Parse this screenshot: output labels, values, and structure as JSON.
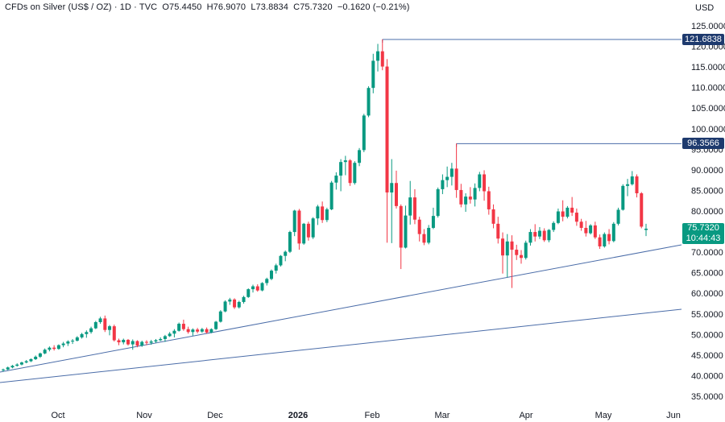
{
  "legend": {
    "title": "CFDs on Silver (US$ / OZ) · 1D · TVC",
    "open": "O75.4450",
    "high": "H76.9070",
    "low": "L73.8834",
    "close": "C75.7320",
    "change": "−0.1620 (−0.21%)"
  },
  "currency": "USD",
  "tags": {
    "high1": "121.6838",
    "high2": "96.3566",
    "last_price": "75.7320",
    "countdown": "10:44:43"
  },
  "colors": {
    "up": "#089981",
    "down": "#f23645",
    "line": "#4a6ca8",
    "tag": "#1e3a6e",
    "last": "#089981"
  },
  "chart_data": {
    "type": "candlestick",
    "title": "CFDs on Silver (US$ / OZ) · 1D · TVC",
    "ylim": [
      33,
      126
    ],
    "y_ticks": [
      35,
      40,
      45,
      50,
      55,
      60,
      65,
      70,
      75,
      80,
      85,
      90,
      95,
      100,
      105,
      110,
      115,
      120,
      125
    ],
    "x_tick_labels": [
      "Oct",
      "Nov",
      "Dec",
      "2026",
      "Feb",
      "Mar",
      "Apr",
      "May",
      "Jun"
    ],
    "series": [
      {
        "name": "Silver",
        "ohlc": [
          [
            41.4,
            41.7,
            41.0,
            41.5
          ],
          [
            41.5,
            42.2,
            41.3,
            42.0
          ],
          [
            42.0,
            42.6,
            41.8,
            42.4
          ],
          [
            42.4,
            43.0,
            42.2,
            42.7
          ],
          [
            42.7,
            43.4,
            42.5,
            43.2
          ],
          [
            43.2,
            43.8,
            43.0,
            43.5
          ],
          [
            43.5,
            44.2,
            43.3,
            44.0
          ],
          [
            44.0,
            44.9,
            43.8,
            44.6
          ],
          [
            44.6,
            45.6,
            44.3,
            45.4
          ],
          [
            45.4,
            46.6,
            45.2,
            46.3
          ],
          [
            46.3,
            47.1,
            45.9,
            46.8
          ],
          [
            46.8,
            47.4,
            46.1,
            46.5
          ],
          [
            46.5,
            47.6,
            46.3,
            47.4
          ],
          [
            47.4,
            48.2,
            46.9,
            47.8
          ],
          [
            47.8,
            48.6,
            47.2,
            48.3
          ],
          [
            48.3,
            48.9,
            47.7,
            48.5
          ],
          [
            48.5,
            49.6,
            48.3,
            49.3
          ],
          [
            49.3,
            50.4,
            49.0,
            50.1
          ],
          [
            50.1,
            51.0,
            49.2,
            50.6
          ],
          [
            50.6,
            51.9,
            50.2,
            51.5
          ],
          [
            51.5,
            53.3,
            51.3,
            53.0
          ],
          [
            53.0,
            54.3,
            52.6,
            53.9
          ],
          [
            53.9,
            54.6,
            50.6,
            51.1
          ],
          [
            51.1,
            52.3,
            49.8,
            52.0
          ],
          [
            52.0,
            52.4,
            48.3,
            48.6
          ],
          [
            48.6,
            49.0,
            47.4,
            48.1
          ],
          [
            48.1,
            49.0,
            47.6,
            48.7
          ],
          [
            48.7,
            48.9,
            47.3,
            47.6
          ],
          [
            47.6,
            48.8,
            46.3,
            48.4
          ],
          [
            48.4,
            48.6,
            46.9,
            47.3
          ],
          [
            47.3,
            48.5,
            47.0,
            48.2
          ],
          [
            48.2,
            48.6,
            47.4,
            48.0
          ],
          [
            48.0,
            48.7,
            47.5,
            48.3
          ],
          [
            48.3,
            48.9,
            47.9,
            48.6
          ],
          [
            48.6,
            49.3,
            48.4,
            48.9
          ],
          [
            48.9,
            49.9,
            48.2,
            49.6
          ],
          [
            49.6,
            50.6,
            49.4,
            50.2
          ],
          [
            50.2,
            51.3,
            49.3,
            50.9
          ],
          [
            50.9,
            52.9,
            50.7,
            52.6
          ],
          [
            52.6,
            53.6,
            50.9,
            51.3
          ],
          [
            51.3,
            51.9,
            50.2,
            50.6
          ],
          [
            50.6,
            51.5,
            49.7,
            51.2
          ],
          [
            51.2,
            51.6,
            50.3,
            50.7
          ],
          [
            50.7,
            51.6,
            50.4,
            51.3
          ],
          [
            51.3,
            51.7,
            50.2,
            50.5
          ],
          [
            50.5,
            51.5,
            50.3,
            51.3
          ],
          [
            51.3,
            53.3,
            51.1,
            53.1
          ],
          [
            53.1,
            55.9,
            52.9,
            55.6
          ],
          [
            55.6,
            58.3,
            55.4,
            58.0
          ],
          [
            58.0,
            58.9,
            57.2,
            58.5
          ],
          [
            58.5,
            58.8,
            56.2,
            56.6
          ],
          [
            56.6,
            58.2,
            56.3,
            57.9
          ],
          [
            57.9,
            59.4,
            57.5,
            59.1
          ],
          [
            59.1,
            61.2,
            58.9,
            61.0
          ],
          [
            61.0,
            62.1,
            60.2,
            61.7
          ],
          [
            61.7,
            62.2,
            60.4,
            60.7
          ],
          [
            60.7,
            62.7,
            60.5,
            62.5
          ],
          [
            62.5,
            63.8,
            61.9,
            63.5
          ],
          [
            63.5,
            65.8,
            63.2,
            65.5
          ],
          [
            65.5,
            67.2,
            64.8,
            66.8
          ],
          [
            66.8,
            69.3,
            66.5,
            69.1
          ],
          [
            69.1,
            70.4,
            67.8,
            70.1
          ],
          [
            70.1,
            75.2,
            69.8,
            74.9
          ],
          [
            74.9,
            80.3,
            73.9,
            80.1
          ],
          [
            80.1,
            80.5,
            70.6,
            72.1
          ],
          [
            72.1,
            77.1,
            71.8,
            76.9
          ],
          [
            76.9,
            77.4,
            72.8,
            73.6
          ],
          [
            73.6,
            78.5,
            73.2,
            78.2
          ],
          [
            78.2,
            81.5,
            76.6,
            81.1
          ],
          [
            81.1,
            82.3,
            77.1,
            77.8
          ],
          [
            77.8,
            80.8,
            77.3,
            80.4
          ],
          [
            80.4,
            87.3,
            80.2,
            86.9
          ],
          [
            86.9,
            89.4,
            85.2,
            88.6
          ],
          [
            88.6,
            92.6,
            84.8,
            91.9
          ],
          [
            91.9,
            93.4,
            88.7,
            92.3
          ],
          [
            92.3,
            92.6,
            86.1,
            86.8
          ],
          [
            86.8,
            92.1,
            86.4,
            91.7
          ],
          [
            91.7,
            95.3,
            90.9,
            94.8
          ],
          [
            94.8,
            103.6,
            94.3,
            103.2
          ],
          [
            103.2,
            110.3,
            102.8,
            109.9
          ],
          [
            109.9,
            118.2,
            108.6,
            116.5
          ],
          [
            116.5,
            120.6,
            113.9,
            118.8
          ],
          [
            118.8,
            121.7,
            114.2,
            115.1
          ],
          [
            115.1,
            116.9,
            72.3,
            84.5
          ],
          [
            84.5,
            92.6,
            72.2,
            86.8
          ],
          [
            86.8,
            89.8,
            80.6,
            81.2
          ],
          [
            81.2,
            81.6,
            65.9,
            71.1
          ],
          [
            71.1,
            81.3,
            70.9,
            78.9
          ],
          [
            78.9,
            87.3,
            76.7,
            83.3
          ],
          [
            83.3,
            85.3,
            76.8,
            77.9
          ],
          [
            77.9,
            78.6,
            72.6,
            74.4
          ],
          [
            74.4,
            75.6,
            71.7,
            72.3
          ],
          [
            72.3,
            76.6,
            71.9,
            75.9
          ],
          [
            75.9,
            80.8,
            75.6,
            78.8
          ],
          [
            78.8,
            85.7,
            78.4,
            85.3
          ],
          [
            85.3,
            88.9,
            84.1,
            87.5
          ],
          [
            87.5,
            90.8,
            85.8,
            88.3
          ],
          [
            88.3,
            91.7,
            86.2,
            90.3
          ],
          [
            90.3,
            96.4,
            83.2,
            85.1
          ],
          [
            85.1,
            86.6,
            80.9,
            81.6
          ],
          [
            81.6,
            84.3,
            79.8,
            83.5
          ],
          [
            83.5,
            85.8,
            81.8,
            82.8
          ],
          [
            82.8,
            86.7,
            81.1,
            85.6
          ],
          [
            85.6,
            89.5,
            84.8,
            88.9
          ],
          [
            88.9,
            89.9,
            82.5,
            84.8
          ],
          [
            84.8,
            85.9,
            79.1,
            80.4
          ],
          [
            80.4,
            81.6,
            75.8,
            76.9
          ],
          [
            76.9,
            78.6,
            72.1,
            73.3
          ],
          [
            73.3,
            74.8,
            64.8,
            69.2
          ],
          [
            69.2,
            74.4,
            63.9,
            72.6
          ],
          [
            72.6,
            74.1,
            61.3,
            70.6
          ],
          [
            70.6,
            71.8,
            68.1,
            69.3
          ],
          [
            69.3,
            70.5,
            67.2,
            68.6
          ],
          [
            68.6,
            72.8,
            68.2,
            72.3
          ],
          [
            72.3,
            75.6,
            71.6,
            74.9
          ],
          [
            74.9,
            76.8,
            72.6,
            73.8
          ],
          [
            73.8,
            76.1,
            73.2,
            75.2
          ],
          [
            75.2,
            75.8,
            72.5,
            72.9
          ],
          [
            72.9,
            75.6,
            72.4,
            75.4
          ],
          [
            75.4,
            77.5,
            74.9,
            77.1
          ],
          [
            77.1,
            80.6,
            76.8,
            79.9
          ],
          [
            79.9,
            82.6,
            77.5,
            78.6
          ],
          [
            78.6,
            81.2,
            78.2,
            80.8
          ],
          [
            80.8,
            83.4,
            78.8,
            79.6
          ],
          [
            79.6,
            80.6,
            76.4,
            77.4
          ],
          [
            77.4,
            78.1,
            75.2,
            75.9
          ],
          [
            75.9,
            77.6,
            73.8,
            74.6
          ],
          [
            74.6,
            76.8,
            74.3,
            76.5
          ],
          [
            76.5,
            77.4,
            73.2,
            73.6
          ],
          [
            73.6,
            74.3,
            70.8,
            71.4
          ],
          [
            71.4,
            74.8,
            71.1,
            74.4
          ],
          [
            74.4,
            75.6,
            71.9,
            72.7
          ],
          [
            72.7,
            77.3,
            72.4,
            76.9
          ],
          [
            76.9,
            80.8,
            76.5,
            80.3
          ],
          [
            80.3,
            86.5,
            80.1,
            86.1
          ],
          [
            86.1,
            87.8,
            83.6,
            86.5
          ],
          [
            86.5,
            89.7,
            86.2,
            88.4
          ],
          [
            88.4,
            88.9,
            83.3,
            84.3
          ],
          [
            84.3,
            84.6,
            75.8,
            76.2
          ],
          [
            75.4,
            76.9,
            73.9,
            75.7
          ]
        ]
      }
    ],
    "horizontal_lines": [
      121.6838,
      96.3566
    ],
    "last_price": 75.732
  }
}
